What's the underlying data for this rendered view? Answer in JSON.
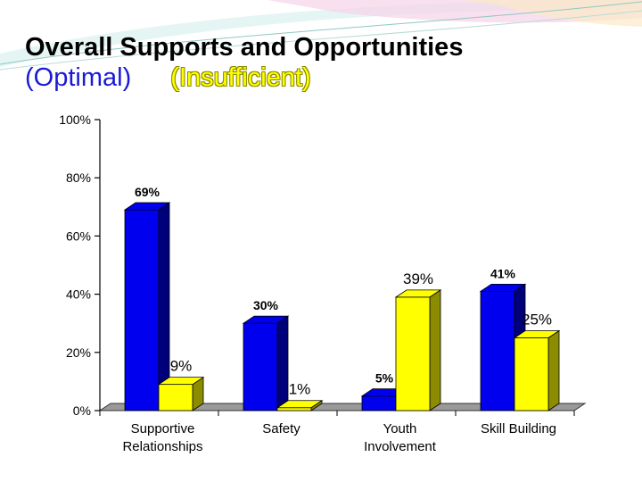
{
  "slide": {
    "title": "Overall Supports and Opportunities",
    "legend_optimal": "(Optimal)",
    "legend_insufficient": "(Insufficient)"
  },
  "colors": {
    "optimal": "#0000ee",
    "optimal_side": "#00007a",
    "insufficient": "#ffff00",
    "insufficient_side": "#8c8c00",
    "floor": "#9a9a9a"
  },
  "chart_data": {
    "type": "bar",
    "categories": [
      [
        "Supportive",
        "Relationships"
      ],
      [
        "Safety"
      ],
      [
        "Youth",
        "Involvement"
      ],
      [
        "Skill Building"
      ]
    ],
    "series": [
      {
        "name": "(Optimal)",
        "values": [
          69,
          30,
          5,
          41
        ],
        "labels": [
          "69%",
          "30%",
          "5%",
          "41%"
        ]
      },
      {
        "name": "(Insufficient)",
        "values": [
          9,
          1,
          39,
          25
        ],
        "labels": [
          "9%",
          "1%",
          "39%",
          "25%"
        ]
      }
    ],
    "ylim": [
      0,
      100
    ],
    "yticks": [
      0,
      20,
      40,
      60,
      80,
      100
    ],
    "ytick_labels": [
      "0%",
      "20%",
      "40%",
      "60%",
      "80%",
      "100%"
    ],
    "grid": false,
    "three_d": true
  }
}
